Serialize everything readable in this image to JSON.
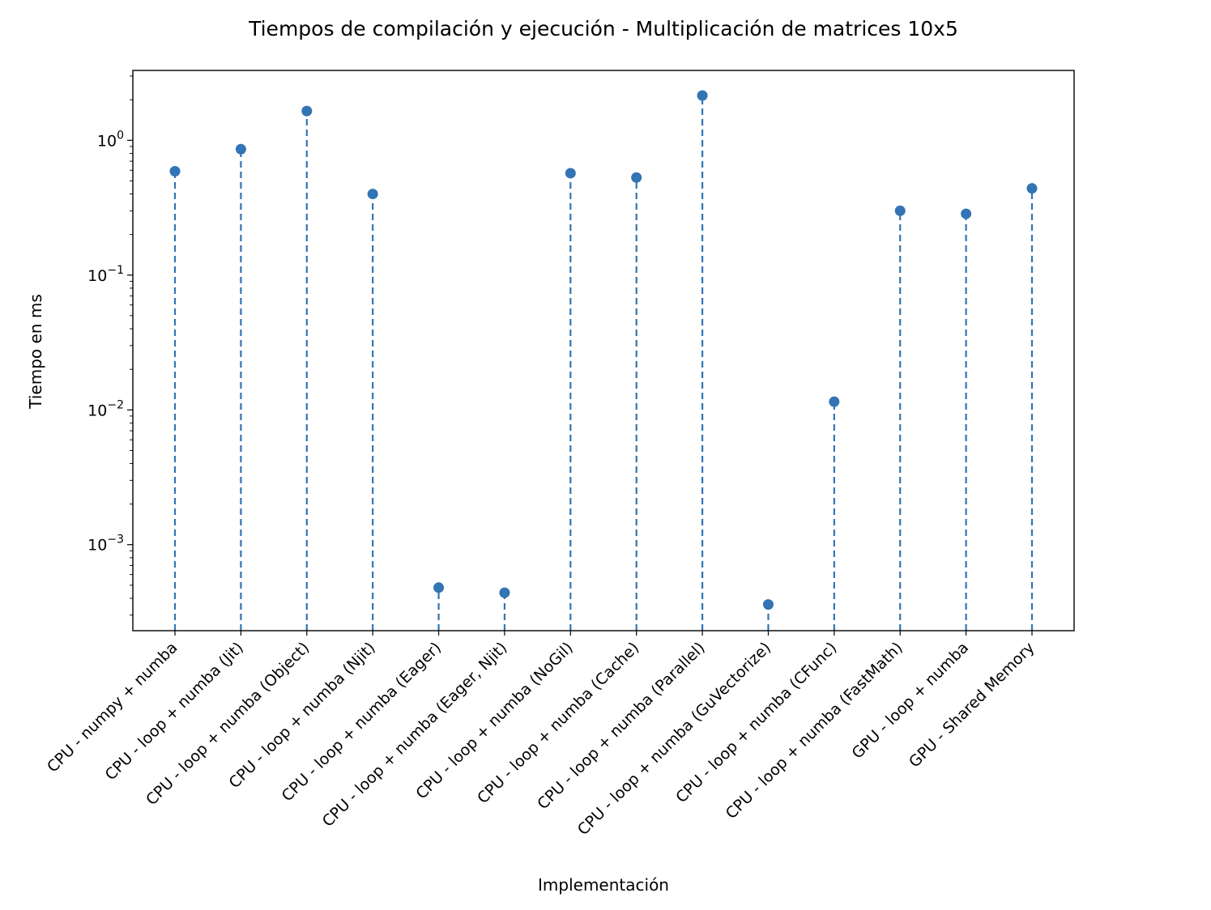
{
  "chart_data": {
    "type": "stem",
    "title": "Tiempos de compilación y ejecución - Multiplicación de matrices 10x5",
    "xlabel": "Implementación",
    "ylabel": "Tiempo en ms",
    "yscale": "log",
    "ylim": [
      0.00023,
      3.3
    ],
    "yticks": [
      {
        "value": 1,
        "base": "10",
        "exp": "0"
      },
      {
        "value": 0.1,
        "base": "10",
        "exp": "−1"
      },
      {
        "value": 0.01,
        "base": "10",
        "exp": "−2"
      },
      {
        "value": 0.001,
        "base": "10",
        "exp": "−3"
      }
    ],
    "grid": false,
    "color": "#3274b4",
    "line_style": "dashed",
    "categories": [
      "CPU - numpy + numba",
      "CPU - loop + numba (Jit)",
      "CPU - loop + numba (Object)",
      "CPU - loop + numba (Njit)",
      "CPU - loop + numba (Eager)",
      "CPU - loop + numba (Eager, Njit)",
      "CPU - loop + numba (NoGil)",
      "CPU - loop + numba (Cache)",
      "CPU - loop + numba (Parallel)",
      "CPU - loop + numba (GuVectorize)",
      "CPU - loop + numba (CFunc)",
      "CPU - loop + numba (FastMath)",
      "GPU - loop + numba",
      "GPU - Shared Memory"
    ],
    "values": [
      0.59,
      0.86,
      1.65,
      0.4,
      0.00048,
      0.00044,
      0.57,
      0.53,
      2.15,
      0.00036,
      0.0115,
      0.3,
      0.285,
      0.44
    ]
  }
}
